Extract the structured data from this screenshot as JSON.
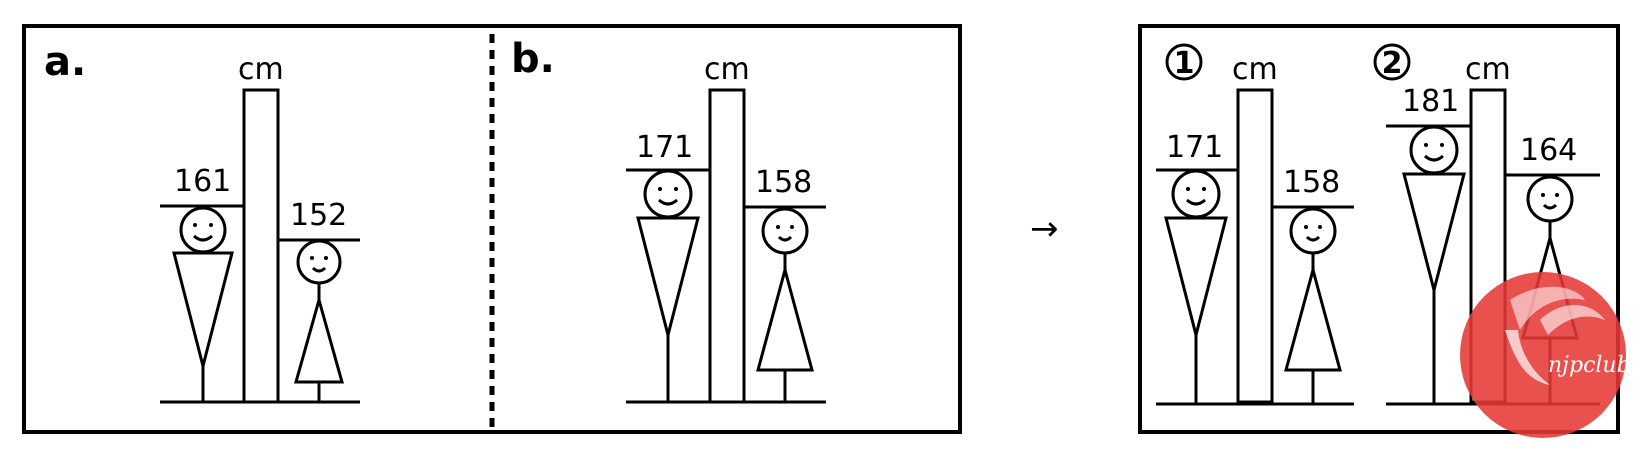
{
  "unit": "cm",
  "arrow": "→",
  "watermark": "njpclub",
  "panel_a": {
    "label": "a.",
    "man_height": "161",
    "woman_height": "152"
  },
  "panel_b": {
    "label": "b.",
    "man_height": "171",
    "woman_height": "158"
  },
  "panel_result": {
    "scene1": {
      "marker": "1",
      "man_height": "171",
      "woman_height": "158"
    },
    "scene2": {
      "marker": "2",
      "man_height": "181",
      "woman_height": "164"
    }
  }
}
